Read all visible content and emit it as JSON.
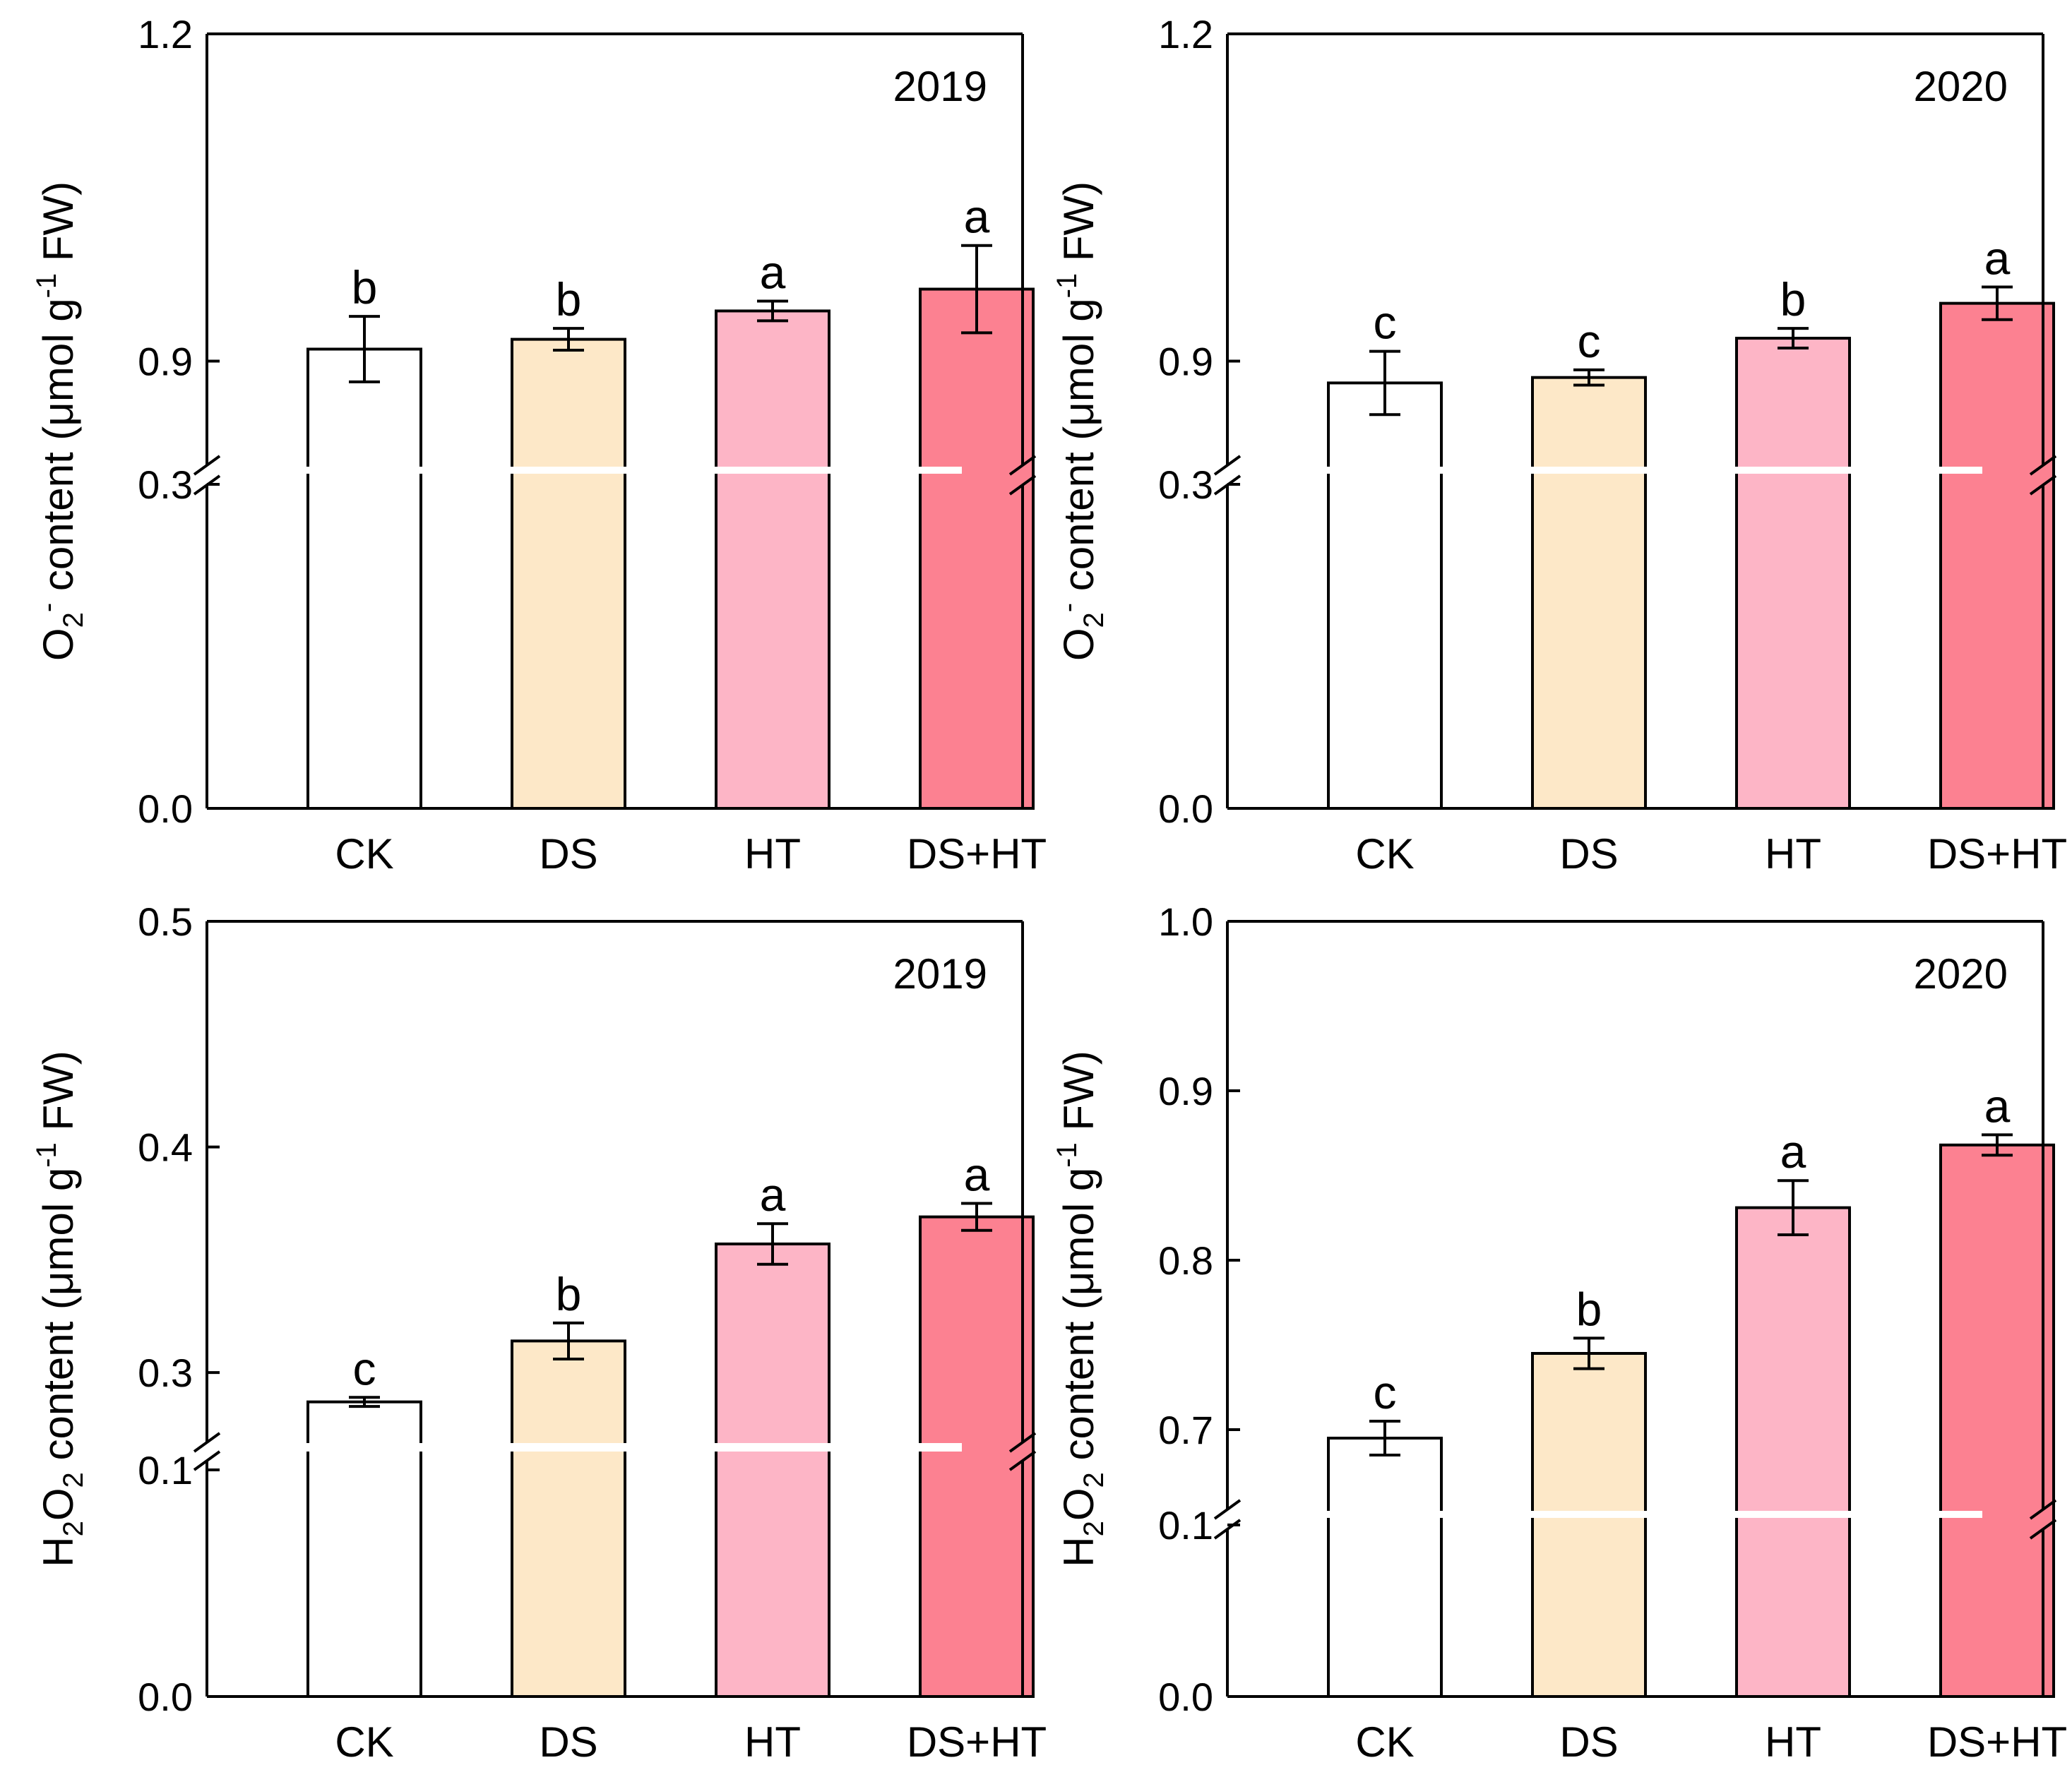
{
  "colors": {
    "CK": "#ffffff",
    "DS": "#fde8c8",
    "HT": "#fdb5c6",
    "DS+HT": "#fc8191",
    "axis": "#000000"
  },
  "chart_data": [
    {
      "type": "bar",
      "title": "2019",
      "categories": [
        "CK",
        "DS",
        "HT",
        "DS+HT"
      ],
      "values": [
        0.911,
        0.92,
        0.946,
        0.966
      ],
      "errors": [
        0.03,
        0.01,
        0.009,
        0.04
      ],
      "letters": [
        "b",
        "b",
        "a",
        "a"
      ],
      "ylabel": {
        "main": "O",
        "sub": "2",
        "sup": "-",
        "rest": " content (μmol g",
        "unitsup": "-1",
        "end": " FW)"
      },
      "broken_axis": {
        "lower": [
          0,
          0.3
        ],
        "upper": [
          0.8,
          1.2
        ]
      },
      "yticks": [
        {
          "value": 0,
          "label": "0.0"
        },
        {
          "value": 0.3,
          "label": "0.3"
        },
        {
          "value": 0.9,
          "label": "0.9"
        },
        {
          "value": 1.2,
          "label": "1.2"
        }
      ]
    },
    {
      "type": "bar",
      "title": "2020",
      "categories": [
        "CK",
        "DS",
        "HT",
        "DS+HT"
      ],
      "values": [
        0.88,
        0.885,
        0.921,
        0.953
      ],
      "errors": [
        0.029,
        0.007,
        0.009,
        0.015
      ],
      "letters": [
        "c",
        "c",
        "b",
        "a"
      ],
      "ylabel": {
        "main": "O",
        "sub": "2",
        "sup": "-",
        "rest": " content (μmol g",
        "unitsup": "-1",
        "end": " FW)"
      },
      "broken_axis": {
        "lower": [
          0,
          0.3
        ],
        "upper": [
          0.8,
          1.2
        ]
      },
      "yticks": [
        {
          "value": 0,
          "label": "0.0"
        },
        {
          "value": 0.3,
          "label": "0.3"
        },
        {
          "value": 0.9,
          "label": "0.9"
        },
        {
          "value": 1.2,
          "label": "1.2"
        }
      ]
    },
    {
      "type": "bar",
      "title": "2019",
      "categories": [
        "CK",
        "DS",
        "HT",
        "DS+HT"
      ],
      "values": [
        0.287,
        0.314,
        0.357,
        0.369
      ],
      "errors": [
        0.002,
        0.008,
        0.009,
        0.006
      ],
      "letters": [
        "c",
        "b",
        "a",
        "a"
      ],
      "ylabel": {
        "main": "H",
        "sub": "2",
        "main2": "O",
        "sub2": "2",
        "rest": " content (μmol g",
        "unitsup": "-1",
        "end": " FW)"
      },
      "broken_axis": {
        "lower": [
          0,
          0.1
        ],
        "upper": [
          0.27,
          0.5
        ]
      },
      "yticks": [
        {
          "value": 0,
          "label": "0.0"
        },
        {
          "value": 0.1,
          "label": "0.1"
        },
        {
          "value": 0.3,
          "label": "0.3"
        },
        {
          "value": 0.4,
          "label": "0.4"
        },
        {
          "value": 0.5,
          "label": "0.5"
        }
      ]
    },
    {
      "type": "bar",
      "title": "2020",
      "categories": [
        "CK",
        "DS",
        "HT",
        "DS+HT"
      ],
      "values": [
        0.695,
        0.745,
        0.831,
        0.868
      ],
      "errors": [
        0.01,
        0.009,
        0.016,
        0.006
      ],
      "letters": [
        "c",
        "b",
        "a",
        "a"
      ],
      "ylabel": {
        "main": "H",
        "sub": "2",
        "main2": "O",
        "sub2": "2",
        "rest": " content (μmol g",
        "unitsup": "-1",
        "end": " FW)"
      },
      "broken_axis": {
        "lower": [
          0,
          0.1
        ],
        "upper": [
          0.65,
          1.0
        ]
      },
      "yticks": [
        {
          "value": 0,
          "label": "0.0"
        },
        {
          "value": 0.1,
          "label": "0.1"
        },
        {
          "value": 0.7,
          "label": "0.7"
        },
        {
          "value": 0.8,
          "label": "0.8"
        },
        {
          "value": 0.9,
          "label": "0.9"
        },
        {
          "value": 1.0,
          "label": "1.0"
        }
      ]
    }
  ]
}
